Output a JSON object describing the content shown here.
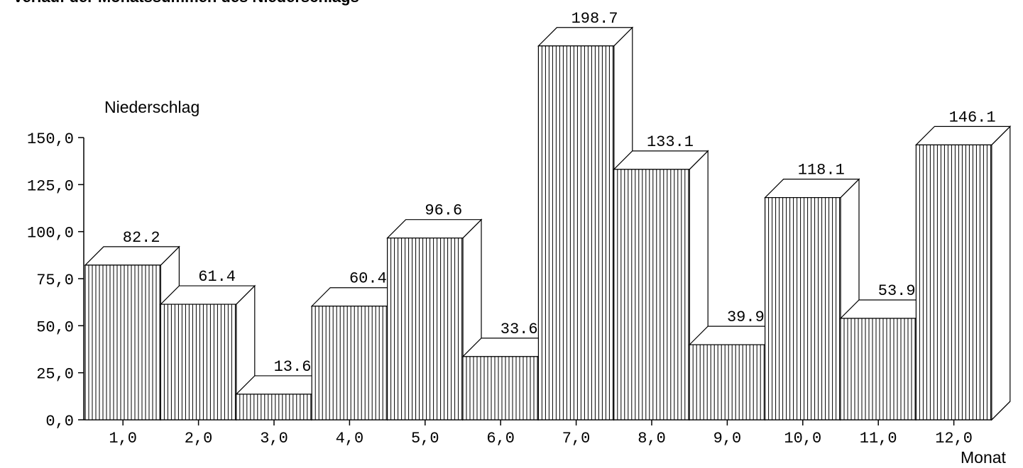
{
  "chart_data": {
    "type": "bar",
    "title": "Verlauf der Monatssummen des Niederschlags",
    "ylabel": "Niederschlag",
    "xlabel": "Monat",
    "categories": [
      "1,0",
      "2,0",
      "3,0",
      "4,0",
      "5,0",
      "6,0",
      "7,0",
      "8,0",
      "9,0",
      "10,0",
      "11,0",
      "12,0"
    ],
    "values": [
      82.2,
      61.4,
      13.6,
      60.4,
      96.6,
      33.6,
      198.7,
      133.1,
      39.9,
      118.1,
      53.9,
      146.1
    ],
    "value_labels": [
      "82.2",
      "61.4",
      "13.6",
      "60.4",
      "96.6",
      "33.6",
      "198.7",
      "133.1",
      "39.9",
      "118.1",
      "53.9",
      "146.1"
    ],
    "y_ticks": [
      0,
      25,
      50,
      75,
      100,
      125,
      150
    ],
    "y_tick_labels": [
      "0,0",
      "25,0",
      "50,0",
      "75,0",
      "100,0",
      "125,0",
      "150,0"
    ],
    "ylim": [
      0,
      150
    ],
    "grid": false,
    "style": "3d-hatched-bars",
    "bar_color": "#ffffff",
    "line_color": "#000000"
  }
}
